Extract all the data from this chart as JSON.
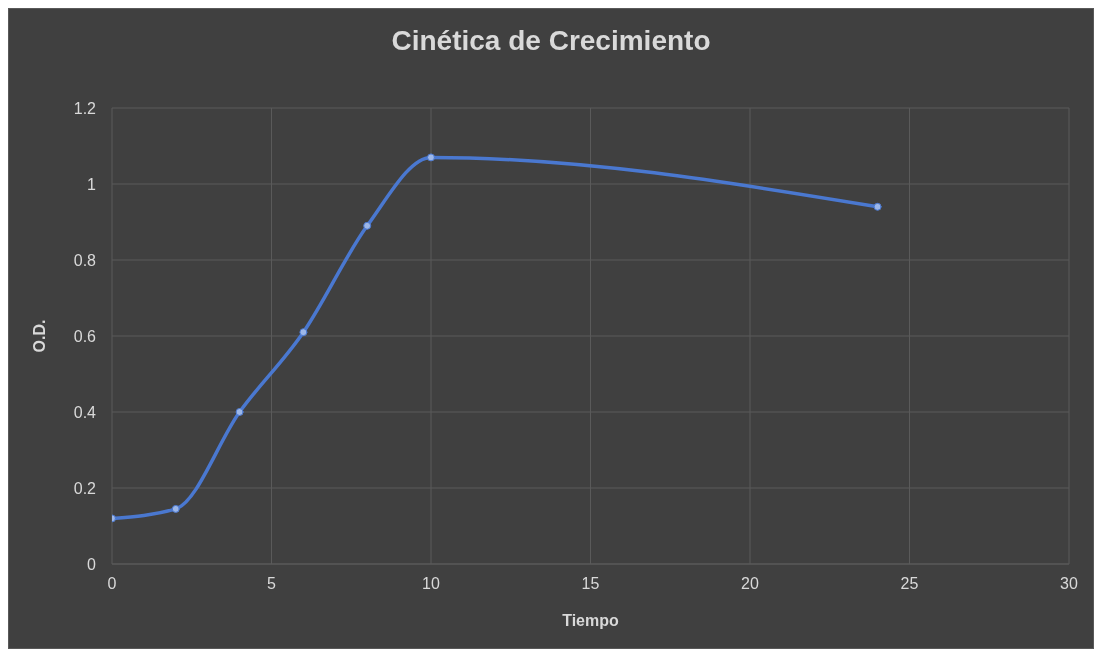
{
  "chart_data": {
    "type": "line",
    "title": "Cinética de Crecimiento",
    "xlabel": "Tiempo",
    "ylabel": "O.D.",
    "x": [
      0,
      2,
      4,
      6,
      8,
      10,
      24
    ],
    "series": [
      {
        "color": "#4a78d0",
        "values": [
          0.12,
          0.145,
          0.4,
          0.61,
          0.89,
          1.07,
          0.94
        ]
      }
    ],
    "xlim": [
      0,
      30
    ],
    "xticks": [
      0,
      5,
      10,
      15,
      20,
      25,
      30
    ],
    "ylim": [
      0,
      1.2
    ],
    "yticks": [
      0,
      0.2,
      0.4,
      0.6,
      0.8,
      1,
      1.2
    ],
    "grid": true,
    "marker": "circle",
    "line_style": "solid"
  }
}
